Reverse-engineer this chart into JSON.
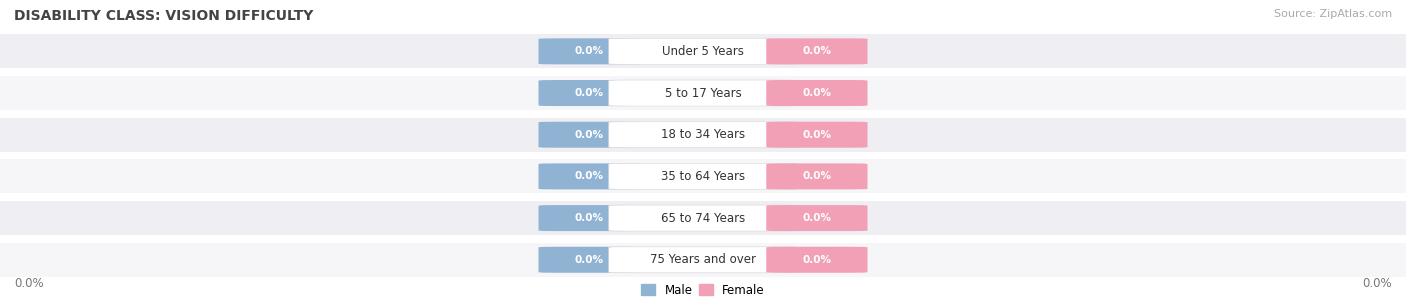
{
  "title": "DISABILITY CLASS: VISION DIFFICULTY",
  "source_text": "Source: ZipAtlas.com",
  "categories": [
    "Under 5 Years",
    "5 to 17 Years",
    "18 to 34 Years",
    "35 to 64 Years",
    "65 to 74 Years",
    "75 Years and over"
  ],
  "male_values": [
    "0.0%",
    "0.0%",
    "0.0%",
    "0.0%",
    "0.0%",
    "0.0%"
  ],
  "female_values": [
    "0.0%",
    "0.0%",
    "0.0%",
    "0.0%",
    "0.0%",
    "0.0%"
  ],
  "male_color": "#91b3d3",
  "female_color": "#f2a0b5",
  "row_bg_even": "#eeeef3",
  "row_bg_odd": "#f6f6f9",
  "title_color": "#444444",
  "cat_label_color": "#333333",
  "source_color": "#aaaaaa",
  "male_label": "Male",
  "female_label": "Female",
  "x_axis_label_left": "0.0%",
  "x_axis_label_right": "0.0%",
  "title_fontsize": 10,
  "source_fontsize": 8,
  "cat_fontsize": 8.5,
  "pct_fontsize": 7.5,
  "legend_fontsize": 8.5
}
